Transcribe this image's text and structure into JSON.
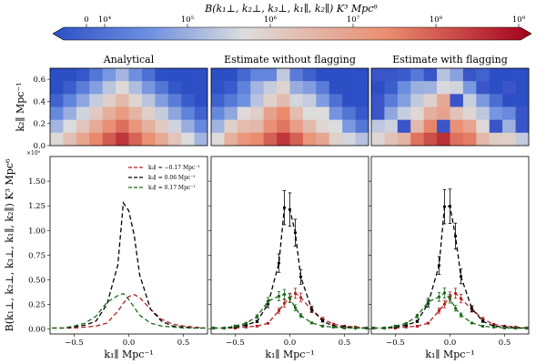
{
  "colorbar": {
    "title": "B(k₁⊥, k₂⊥, k₃⊥, k₁∥, k₂∥) K³ Mpc⁶",
    "ticks": [
      {
        "label": "0",
        "value": 0
      },
      {
        "label": "10⁴",
        "value": 10000
      },
      {
        "label": "10⁵",
        "value": 100000
      },
      {
        "label": "10⁶",
        "value": 1000000
      },
      {
        "label": "10⁷",
        "value": 10000000
      },
      {
        "label": "10⁸",
        "value": 100000000
      },
      {
        "label": "10⁹",
        "value": 1000000000
      }
    ],
    "low_color": "#2c4fc6",
    "mid_color": "#dddddd",
    "high_color": "#a3001b"
  },
  "heatmap_panels": [
    {
      "title": "Analytical"
    },
    {
      "title": "Estimate without flagging"
    },
    {
      "title": "Estimate with flagging"
    }
  ],
  "heatmap_ylabel": "k₂∥ Mpc⁻¹",
  "heatmap_yticks": [
    {
      "label": "0.0",
      "value": 0.0
    },
    {
      "label": "0.2",
      "value": 0.2
    },
    {
      "label": "0.4",
      "value": 0.4
    },
    {
      "label": "0.6",
      "value": 0.6
    }
  ],
  "chart_data": {
    "type": "line",
    "title": "",
    "xlabel": "k₁∥ Mpc⁻¹",
    "ylabel": "B(k₁⊥, k₂⊥, k₃⊥, k₁∥, k₂∥) K³ Mpc⁶",
    "y_offset_label": "×10⁹",
    "xlim": [
      -0.72,
      0.72
    ],
    "ylim": [
      -0.05,
      1.75
    ],
    "xticks": [
      -0.5,
      0.0,
      0.5
    ],
    "xtick_labels": [
      "−0.5",
      "0.0",
      "0.5"
    ],
    "yticks": [
      0.0,
      0.25,
      0.5,
      0.75,
      1.0,
      1.25,
      1.5
    ],
    "ytick_labels": [
      "0.00",
      "0.25",
      "0.50",
      "0.75",
      "1.00",
      "1.25",
      "1.50"
    ],
    "x": [
      -0.7,
      -0.6,
      -0.5,
      -0.4,
      -0.3,
      -0.2,
      -0.1,
      -0.05,
      0.0,
      0.05,
      0.1,
      0.2,
      0.3,
      0.4,
      0.5,
      0.6,
      0.7
    ],
    "legend_position": "upper-right of first panel",
    "series": [
      {
        "name": "k₂∥ = −0.17 Mpc⁻¹",
        "color": "#b22222",
        "values": [
          0.01,
          0.01,
          0.01,
          0.02,
          0.03,
          0.06,
          0.18,
          0.26,
          0.33,
          0.35,
          0.32,
          0.2,
          0.1,
          0.05,
          0.03,
          0.02,
          0.01
        ]
      },
      {
        "name": "k₂∥ = 0.06 Mpc⁻¹",
        "color": "#000000",
        "values": [
          0.01,
          0.01,
          0.02,
          0.04,
          0.08,
          0.25,
          0.65,
          1.28,
          1.2,
          0.95,
          0.55,
          0.2,
          0.08,
          0.03,
          0.02,
          0.01,
          0.01
        ]
      },
      {
        "name": "k₂∥ = 0.17 Mpc⁻¹",
        "color": "#1d6b1d",
        "values": [
          0.01,
          0.01,
          0.03,
          0.06,
          0.13,
          0.27,
          0.34,
          0.36,
          0.3,
          0.22,
          0.14,
          0.06,
          0.03,
          0.02,
          0.01,
          0.01,
          0.01
        ]
      }
    ],
    "estimate_error_fraction": 0.14,
    "panels": [
      {
        "title": "Analytical",
        "markers": false
      },
      {
        "title": "Estimate without flagging",
        "markers": true
      },
      {
        "title": "Estimate with flagging",
        "markers": true
      }
    ]
  }
}
